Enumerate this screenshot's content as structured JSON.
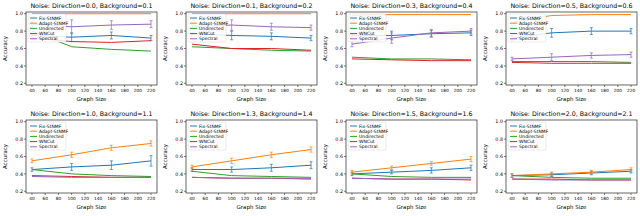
{
  "chart_data": [
    {
      "type": "line",
      "title": "Noise: Direction=0.0, Background=0.1",
      "x_label": "Graph Size",
      "y_label": "Accuracy",
      "legend": "upper left",
      "x": [
        40,
        100,
        160,
        220
      ],
      "xlim": [
        31,
        229
      ],
      "xticks": [
        40,
        60,
        80,
        100,
        120,
        140,
        160,
        180,
        200,
        220
      ],
      "ylim": [
        0.18,
        1.02
      ],
      "yticks": [
        0.2,
        0.4,
        0.6,
        0.8,
        {
          "value": 1,
          "label": "1.0"
        }
      ],
      "series": [
        {
          "name": "Fix-StNMF",
          "color": "#1f77b4",
          "values": [
            0.75,
            0.73,
            0.75,
            0.72
          ],
          "errors": [
            0.02,
            0.05,
            0.04,
            0.03
          ]
        },
        {
          "name": "Adapt-StNMF",
          "color": "#ff7f0e",
          "values": [
            1,
            1,
            1,
            1
          ]
        },
        {
          "name": "Undirected",
          "color": "#2ca02c",
          "values": [
            0.8,
            0.62,
            0.59,
            0.57
          ]
        },
        {
          "name": "WNCut",
          "color": "#d62728",
          "values": [
            0.72,
            0.68,
            0.67,
            0.69
          ]
        },
        {
          "name": "Spectral",
          "color": "#9467bd",
          "values": [
            0.88,
            0.85,
            0.87,
            0.88
          ],
          "errors": [
            0.03,
            0.08,
            0.05,
            0.04
          ]
        }
      ]
    },
    {
      "type": "line",
      "title": "Noise: Direction=0.1, Background=0.2",
      "x_label": "Graph Size",
      "y_label": "Accuracy",
      "legend": "upper left",
      "x": [
        40,
        100,
        160,
        220
      ],
      "xlim": [
        31,
        229
      ],
      "xticks": [
        40,
        60,
        80,
        100,
        120,
        140,
        160,
        180,
        200,
        220
      ],
      "ylim": [
        0.18,
        1.02
      ],
      "yticks": [
        0.2,
        0.4,
        0.6,
        0.8,
        {
          "value": 1,
          "label": "1.0"
        }
      ],
      "series": [
        {
          "name": "Fix-StNMF",
          "color": "#1f77b4",
          "values": [
            0.77,
            0.75,
            0.74,
            0.72
          ],
          "errors": [
            0.02,
            0.05,
            0.04,
            0.03
          ]
        },
        {
          "name": "Adapt-StNMF",
          "color": "#ff7f0e",
          "values": [
            1,
            1,
            1,
            1
          ]
        },
        {
          "name": "Undirected",
          "color": "#2ca02c",
          "values": [
            0.62,
            0.6,
            0.58,
            0.57
          ]
        },
        {
          "name": "WNCut",
          "color": "#d62728",
          "values": [
            0.65,
            0.6,
            0.6,
            0.58
          ]
        },
        {
          "name": "Spectral",
          "color": "#9467bd",
          "values": [
            0.85,
            0.87,
            0.85,
            0.84
          ],
          "errors": [
            0.03,
            0.06,
            0.04,
            0.03
          ]
        }
      ]
    },
    {
      "type": "line",
      "title": "Noise: Direction=0.3, Background=0.4",
      "x_label": "Graph Size",
      "y_label": "Accuracy",
      "legend": "upper left",
      "x": [
        40,
        100,
        160,
        220
      ],
      "xlim": [
        31,
        229
      ],
      "xticks": [
        40,
        60,
        80,
        100,
        120,
        140,
        160,
        180,
        200,
        220
      ],
      "ylim": [
        0.18,
        1.02
      ],
      "yticks": [
        0.2,
        0.4,
        0.6,
        0.8,
        {
          "value": 1,
          "label": "1.0"
        }
      ],
      "series": [
        {
          "name": "Fix-StNMF",
          "color": "#1f77b4",
          "values": [
            0.75,
            0.75,
            0.77,
            0.78
          ],
          "errors": [
            0.02,
            0.05,
            0.04,
            0.03
          ]
        },
        {
          "name": "Adapt-StNMF",
          "color": "#ff7f0e",
          "values": [
            0.98,
            0.99,
            0.99,
            0.99
          ]
        },
        {
          "name": "Undirected",
          "color": "#2ca02c",
          "values": [
            0.5,
            0.48,
            0.48,
            0.47
          ]
        },
        {
          "name": "WNCut",
          "color": "#d62728",
          "values": [
            0.48,
            0.47,
            0.46,
            0.46
          ]
        },
        {
          "name": "Spectral",
          "color": "#9467bd",
          "values": [
            0.65,
            0.72,
            0.78,
            0.8
          ],
          "errors": [
            0.03,
            0.06,
            0.04,
            0.03
          ]
        }
      ]
    },
    {
      "type": "line",
      "title": "Noise: Direction=0.5, Background=0.6",
      "x_label": "Graph Size",
      "y_label": "Accuracy",
      "legend": "upper left",
      "x": [
        40,
        100,
        160,
        220
      ],
      "xlim": [
        31,
        229
      ],
      "xticks": [
        40,
        60,
        80,
        100,
        120,
        140,
        160,
        180,
        200,
        220
      ],
      "ylim": [
        0.18,
        1.02
      ],
      "yticks": [
        0.2,
        0.4,
        0.6,
        0.8,
        {
          "value": 1,
          "label": "1.0"
        }
      ],
      "series": [
        {
          "name": "Fix-StNMF",
          "color": "#1f77b4",
          "values": [
            0.72,
            0.78,
            0.8,
            0.8
          ],
          "errors": [
            0.03,
            0.05,
            0.04,
            0.03
          ]
        },
        {
          "name": "Adapt-StNMF",
          "color": "#ff7f0e",
          "values": [
            0.9,
            0.98,
            0.99,
            0.99
          ]
        },
        {
          "name": "Undirected",
          "color": "#2ca02c",
          "values": [
            0.45,
            0.45,
            0.45,
            0.44
          ]
        },
        {
          "name": "WNCut",
          "color": "#d62728",
          "values": [
            0.44,
            0.43,
            0.43,
            0.43
          ]
        },
        {
          "name": "Spectral",
          "color": "#9467bd",
          "values": [
            0.48,
            0.5,
            0.52,
            0.53
          ],
          "errors": [
            0.02,
            0.04,
            0.03,
            0.03
          ]
        }
      ]
    },
    {
      "type": "line",
      "title": "Noise: Direction=1.0, Background=1.1",
      "x_label": "Graph Size",
      "y_label": "Accuracy",
      "legend": "upper left",
      "x": [
        40,
        100,
        160,
        220
      ],
      "xlim": [
        31,
        229
      ],
      "xticks": [
        40,
        60,
        80,
        100,
        120,
        140,
        160,
        180,
        200,
        220
      ],
      "ylim": [
        0.18,
        1.02
      ],
      "yticks": [
        0.2,
        0.4,
        0.6,
        0.8,
        {
          "value": 1,
          "label": "1.0"
        }
      ],
      "series": [
        {
          "name": "Fix-StNMF",
          "color": "#1f77b4",
          "values": [
            0.45,
            0.48,
            0.5,
            0.55
          ],
          "errors": [
            0.02,
            0.04,
            0.05,
            0.06
          ]
        },
        {
          "name": "Adapt-StNMF",
          "color": "#ff7f0e",
          "values": [
            0.55,
            0.62,
            0.7,
            0.75
          ],
          "errors": [
            0.02,
            0.03,
            0.03,
            0.03
          ]
        },
        {
          "name": "Undirected",
          "color": "#2ca02c",
          "values": [
            0.45,
            0.4,
            0.38,
            0.37
          ]
        },
        {
          "name": "WNCut",
          "color": "#d62728",
          "values": [
            0.38,
            0.37,
            0.36,
            0.36
          ]
        },
        {
          "name": "Spectral",
          "color": "#9467bd",
          "values": [
            0.37,
            0.36,
            0.36,
            0.36
          ]
        }
      ]
    },
    {
      "type": "line",
      "title": "Noise: Direction=1.3, Background=1.4",
      "x_label": "Graph Size",
      "y_label": "Accuracy",
      "legend": "upper left",
      "x": [
        40,
        100,
        160,
        220
      ],
      "xlim": [
        31,
        229
      ],
      "xticks": [
        40,
        60,
        80,
        100,
        120,
        140,
        160,
        180,
        200,
        220
      ],
      "ylim": [
        0.18,
        1.02
      ],
      "yticks": [
        0.2,
        0.4,
        0.6,
        0.8,
        {
          "value": 1,
          "label": "1.0"
        }
      ],
      "series": [
        {
          "name": "Fix-StNMF",
          "color": "#1f77b4",
          "values": [
            0.45,
            0.45,
            0.47,
            0.5
          ],
          "errors": [
            0.02,
            0.03,
            0.04,
            0.04
          ]
        },
        {
          "name": "Adapt-StNMF",
          "color": "#ff7f0e",
          "values": [
            0.48,
            0.55,
            0.62,
            0.68
          ],
          "errors": [
            0.02,
            0.03,
            0.03,
            0.03
          ]
        },
        {
          "name": "Undirected",
          "color": "#2ca02c",
          "values": [
            0.43,
            0.38,
            0.37,
            0.36
          ]
        },
        {
          "name": "WNCut",
          "color": "#d62728",
          "values": [
            0.36,
            0.35,
            0.35,
            0.34
          ]
        },
        {
          "name": "Spectral",
          "color": "#9467bd",
          "values": [
            0.36,
            0.35,
            0.35,
            0.35
          ]
        }
      ]
    },
    {
      "type": "line",
      "title": "Noise: Direction=1.5, Background=1.6",
      "x_label": "Graph Size",
      "y_label": "Accuracy",
      "legend": "upper left",
      "x": [
        40,
        100,
        160,
        220
      ],
      "xlim": [
        31,
        229
      ],
      "xticks": [
        40,
        60,
        80,
        100,
        120,
        140,
        160,
        180,
        200,
        220
      ],
      "ylim": [
        0.18,
        1.02
      ],
      "yticks": [
        0.2,
        0.4,
        0.6,
        0.8,
        {
          "value": 1,
          "label": "1.0"
        }
      ],
      "series": [
        {
          "name": "Fix-StNMF",
          "color": "#1f77b4",
          "values": [
            0.4,
            0.42,
            0.44,
            0.47
          ],
          "errors": [
            0.02,
            0.02,
            0.03,
            0.03
          ]
        },
        {
          "name": "Adapt-StNMF",
          "color": "#ff7f0e",
          "values": [
            0.42,
            0.47,
            0.52,
            0.57
          ],
          "errors": [
            0.02,
            0.02,
            0.02,
            0.03
          ]
        },
        {
          "name": "Undirected",
          "color": "#2ca02c",
          "values": [
            0.4,
            0.37,
            0.36,
            0.36
          ]
        },
        {
          "name": "WNCut",
          "color": "#d62728",
          "values": [
            0.35,
            0.34,
            0.34,
            0.33
          ]
        },
        {
          "name": "Spectral",
          "color": "#9467bd",
          "values": [
            0.35,
            0.34,
            0.34,
            0.34
          ]
        }
      ]
    },
    {
      "type": "line",
      "title": "Noise: Direction=2.0, Background=2.1",
      "x_label": "Graph Size",
      "y_label": "Accuracy",
      "legend": "upper left",
      "x": [
        40,
        100,
        160,
        220
      ],
      "xlim": [
        31,
        229
      ],
      "xticks": [
        40,
        60,
        80,
        100,
        120,
        140,
        160,
        180,
        200,
        220
      ],
      "ylim": [
        0.18,
        1.02
      ],
      "yticks": [
        0.2,
        0.4,
        0.6,
        0.8,
        {
          "value": 1,
          "label": "1.0"
        }
      ],
      "series": [
        {
          "name": "Fix-StNMF",
          "color": "#1f77b4",
          "values": [
            0.38,
            0.39,
            0.41,
            0.43
          ],
          "errors": [
            0.02,
            0.02,
            0.02,
            0.02
          ]
        },
        {
          "name": "Adapt-StNMF",
          "color": "#ff7f0e",
          "values": [
            0.38,
            0.4,
            0.42,
            0.45
          ],
          "errors": [
            0.02,
            0.02,
            0.02,
            0.02
          ]
        },
        {
          "name": "Undirected",
          "color": "#2ca02c",
          "values": [
            0.38,
            0.36,
            0.35,
            0.35
          ]
        },
        {
          "name": "WNCut",
          "color": "#d62728",
          "values": [
            0.34,
            0.34,
            0.33,
            0.33
          ]
        },
        {
          "name": "Spectral",
          "color": "#9467bd",
          "values": [
            0.34,
            0.33,
            0.33,
            0.33
          ]
        }
      ]
    }
  ]
}
